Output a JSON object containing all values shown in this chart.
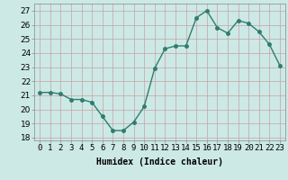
{
  "x": [
    0,
    1,
    2,
    3,
    4,
    5,
    6,
    7,
    8,
    9,
    10,
    11,
    12,
    13,
    14,
    15,
    16,
    17,
    18,
    19,
    20,
    21,
    22,
    23
  ],
  "y": [
    21.2,
    21.2,
    21.1,
    20.7,
    20.7,
    20.5,
    19.5,
    18.5,
    18.5,
    19.1,
    20.2,
    22.9,
    24.3,
    24.5,
    24.5,
    26.5,
    27.0,
    25.8,
    25.4,
    26.3,
    26.1,
    25.5,
    24.6,
    23.1
  ],
  "line_color": "#2e7d6e",
  "marker": "o",
  "marker_size": 2.5,
  "line_width": 1.0,
  "background_color": "#cce9e6",
  "grid_color": "#b0d5d0",
  "xlabel": "Humidex (Indice chaleur)",
  "ylim": [
    17.8,
    27.5
  ],
  "yticks": [
    18,
    19,
    20,
    21,
    22,
    23,
    24,
    25,
    26,
    27
  ],
  "xtick_labels": [
    "0",
    "1",
    "2",
    "3",
    "4",
    "5",
    "6",
    "7",
    "8",
    "9",
    "10",
    "11",
    "12",
    "13",
    "14",
    "15",
    "16",
    "17",
    "18",
    "19",
    "20",
    "21",
    "22",
    "23"
  ],
  "xlabel_fontsize": 7,
  "tick_fontsize": 6.5
}
